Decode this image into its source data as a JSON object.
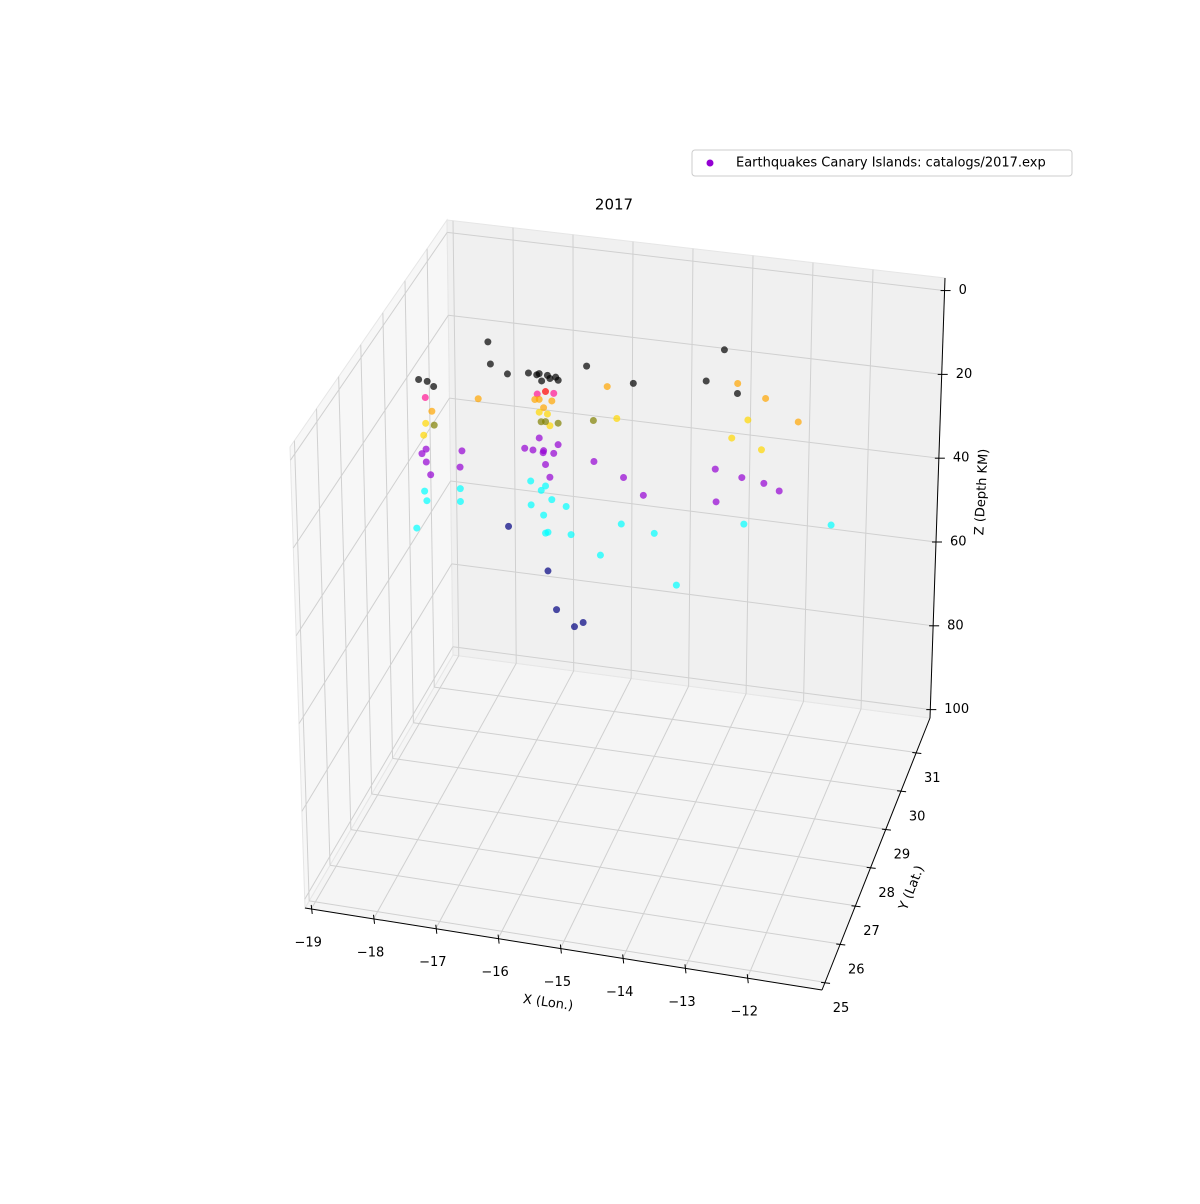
{
  "chart_data": {
    "type": "scatter3d",
    "title": "2017",
    "x_label": "X (Lon.)",
    "y_label": "Y (Lat.)",
    "z_label": "Z (Depth KM)",
    "xlim": [
      -19.1,
      -10.8
    ],
    "ylim": [
      24.8,
      31.9
    ],
    "zlim": [
      -3,
      102
    ],
    "z_inverted": true,
    "grid": true,
    "legend": "upper right",
    "xticks": [
      {
        "value": -19,
        "label": "−19"
      },
      {
        "value": -18,
        "label": "−18"
      },
      {
        "value": -17,
        "label": "−17"
      },
      {
        "value": -16,
        "label": "−16"
      },
      {
        "value": -15,
        "label": "−15"
      },
      {
        "value": -14,
        "label": "−14"
      },
      {
        "value": -13,
        "label": "−13"
      },
      {
        "value": -12,
        "label": "−12"
      }
    ],
    "yticks": [
      25,
      26,
      27,
      28,
      29,
      30,
      31
    ],
    "zticks": [
      0,
      20,
      40,
      60,
      80,
      100
    ],
    "series": [
      {
        "name": "Earthquakes Canary Islands: catalogs/2017.exp",
        "color": "#9400d3",
        "x": [
          -16.4,
          -16.3,
          -16.2,
          -16.5,
          -16.1,
          -16.3,
          -16.6,
          -16.2,
          -16.3,
          -16.2,
          -16.4,
          -16.4,
          -16.3,
          -16.2,
          -16.5,
          -16.4,
          -16.3,
          -16.2,
          -16.3,
          -16.4,
          -16.1,
          -16.4,
          -16.3,
          -16.2,
          -16.5,
          -16.3,
          -16.2,
          -16.4,
          -16.1,
          -16.6,
          -16.3,
          -16.2,
          -16.3,
          -16.4,
          -16.2,
          -16.3,
          -16.5,
          -16.0,
          -15.8,
          -16.6,
          -16.2,
          -16.0,
          -15.8,
          -15.6,
          -18.0,
          -18.1,
          -17.9,
          -18.0,
          -17.9,
          -18.0,
          -18.0,
          -17.9,
          -18.0,
          -18.0,
          -17.9,
          -18.1,
          -17.5,
          -17.5,
          -18.0,
          -18.0,
          -18.1,
          -17.5,
          -17.5,
          -17.2,
          -16.9,
          -17.4,
          -15.8,
          -15.0,
          -13.8,
          -13.9,
          -13.4,
          -17.3,
          -15.5,
          -13.0,
          -12.4,
          -13.5,
          -15.2,
          -13.4,
          -13.2,
          -12.9,
          -15.6,
          -15.5,
          -15.0,
          -14.6,
          -13.6,
          -13.2,
          -12.8,
          -12.6,
          -13.5,
          -15.0,
          -14.5,
          -14.0,
          -13.1,
          -11.8,
          -15.3,
          -16.8
        ],
        "y": [
          28.3,
          28.4,
          28.2,
          28.5,
          28.3,
          28.1,
          28.4,
          28.5,
          28.3,
          28.4,
          28.2,
          28.3,
          28.2,
          28.3,
          28.4,
          28.3,
          28.4,
          28.2,
          28.3,
          28.4,
          28.3,
          28.3,
          28.2,
          28.4,
          28.3,
          28.3,
          28.2,
          28.5,
          28.3,
          28.2,
          28.3,
          28.3,
          28.2,
          28.4,
          28.1,
          28.3,
          28.2,
          28.4,
          28.0,
          28.5,
          28.1,
          27.9,
          28.2,
          28.0,
          27.8,
          27.7,
          27.8,
          27.7,
          27.7,
          27.7,
          27.6,
          27.8,
          27.7,
          27.7,
          27.6,
          27.8,
          27.9,
          27.8,
          27.6,
          27.7,
          27.5,
          27.8,
          27.8,
          28.4,
          28.3,
          28.9,
          28.8,
          28.6,
          29.5,
          28.8,
          28.8,
          28.1,
          28.9,
          29.0,
          28.7,
          29.2,
          28.4,
          28.5,
          28.7,
          28.4,
          28.5,
          28.2,
          28.1,
          27.8,
          28.3,
          28.4,
          28.2,
          28.4,
          28.0,
          28.0,
          28.1,
          27.6,
          28.2,
          28.6,
          27.9,
          28.0
        ],
        "z": [
          1,
          2,
          1,
          3,
          2,
          1,
          2,
          3,
          5,
          6,
          5,
          7,
          8,
          7,
          8,
          10,
          11,
          12,
          12,
          13,
          12,
          16,
          18,
          20,
          19,
          22,
          24,
          21,
          17,
          18,
          27,
          30,
          33,
          29,
          36,
          38,
          31,
          32,
          35,
          28,
          45,
          52,
          58,
          55,
          2,
          1,
          3,
          5,
          8,
          11,
          13,
          12,
          17,
          20,
          22,
          19,
          18,
          21,
          26,
          29,
          34,
          26,
          29,
          1,
          2,
          0,
          2,
          3,
          0,
          2,
          4,
          7,
          7,
          6,
          8,
          5,
          10,
          12,
          9,
          13,
          12,
          19,
          21,
          22,
          18,
          20,
          19,
          22,
          23,
          31,
          33,
          40,
          29,
          30,
          38,
          35
        ],
        "colors": [
          "#000000",
          "#000000",
          "#000000",
          "#000000",
          "#000000",
          "#000000",
          "#000000",
          "#000000",
          "#ff0000",
          "#ff1493",
          "#ff1493",
          "#ffa500",
          "#ffa500",
          "#ffa500",
          "#ffa500",
          "#ffd700",
          "#ffd700",
          "#ffd700",
          "#808000",
          "#808000",
          "#808000",
          "#9400d3",
          "#9400d3",
          "#9400d3",
          "#9400d3",
          "#9400d3",
          "#9400d3",
          "#9400d3",
          "#9400d3",
          "#9400d3",
          "#00ffff",
          "#00ffff",
          "#00ffff",
          "#00ffff",
          "#00ffff",
          "#00ffff",
          "#00ffff",
          "#00ffff",
          "#00ffff",
          "#00ffff",
          "#000080",
          "#000080",
          "#000080",
          "#000080",
          "#000000",
          "#000000",
          "#000000",
          "#ff1493",
          "#ffa500",
          "#ffd700",
          "#ffd700",
          "#808000",
          "#9400d3",
          "#9400d3",
          "#9400d3",
          "#9400d3",
          "#9400d3",
          "#9400d3",
          "#00ffff",
          "#00ffff",
          "#00ffff",
          "#00ffff",
          "#00ffff",
          "#000000",
          "#000000",
          "#000000",
          "#000000",
          "#000000",
          "#000000",
          "#000000",
          "#000000",
          "#ffa500",
          "#ffa500",
          "#ffa500",
          "#ffa500",
          "#ffa500",
          "#ffd700",
          "#ffd700",
          "#ffd700",
          "#ffd700",
          "#808000",
          "#9400d3",
          "#9400d3",
          "#9400d3",
          "#9400d3",
          "#9400d3",
          "#9400d3",
          "#9400d3",
          "#9400d3",
          "#00ffff",
          "#00ffff",
          "#00ffff",
          "#00ffff",
          "#00ffff",
          "#00ffff",
          "#000080"
        ]
      }
    ]
  }
}
